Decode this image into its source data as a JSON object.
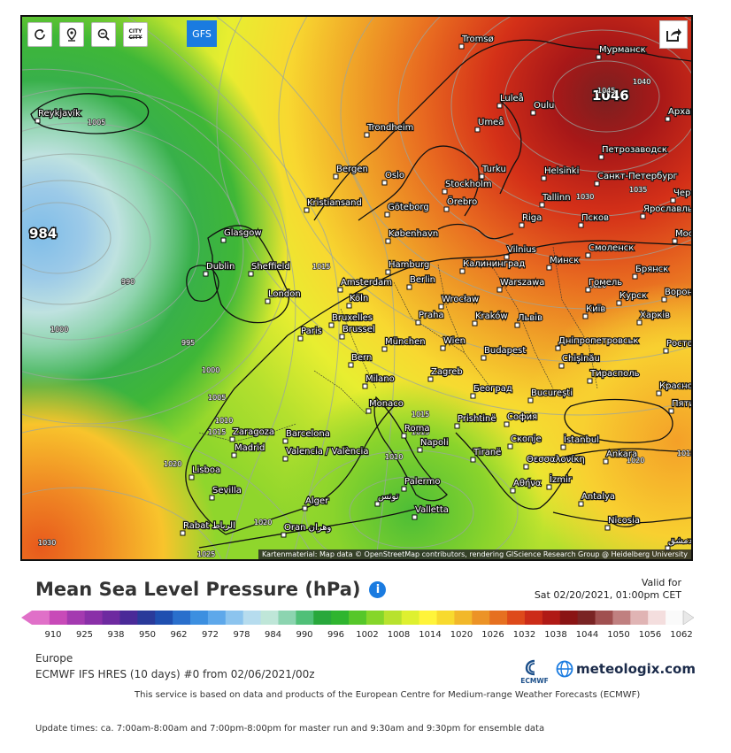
{
  "toolbar": {
    "refresh_icon": "refresh-icon",
    "location_icon": "location-pin-icon",
    "zoom_icon": "zoom-out-icon",
    "city_label_top": "CITY",
    "city_label_bottom": "CITY",
    "gfs_label": "GFS",
    "share_icon": "share-icon"
  },
  "map": {
    "attribution": "Kartenmaterial: Map data © OpenStreetMap contributors, rendering GIScience Research Group @ Heidelberg University",
    "pressure_centers": [
      {
        "label": "984",
        "type": "low"
      },
      {
        "label": "1046",
        "type": "high"
      }
    ],
    "isobar_labels": [
      "1005",
      "990",
      "1000",
      "995",
      "1000",
      "1005",
      "1010",
      "1015",
      "1020",
      "1015",
      "1030",
      "1025",
      "1020",
      "1015",
      "1010",
      "1015",
      "1020",
      "1030",
      "1035",
      "1045",
      "1040",
      "1020",
      "1015"
    ],
    "cities": [
      "Tromsø",
      "Мурманск",
      "Reykjavík",
      "Luleå",
      "Oulu",
      "Архангельск",
      "Umeå",
      "Trondheim",
      "Петрозаводск",
      "Helsinki",
      "Санкт-Петербург",
      "Bergen",
      "Turku",
      "Oslo",
      "Stockholm",
      "Tallinn",
      "Череповец",
      "Kristiansand",
      "Örebro",
      "Göteborg",
      "Ярославль",
      "Псков",
      "Riga",
      "Москва",
      "København",
      "Glasgow",
      "Смоленск",
      "Vilnius",
      "Минск",
      "Калининград",
      "Dublin",
      "Sheffield",
      "Hamburg",
      "Брянск",
      "Berlin",
      "Amsterdam",
      "Warszawa",
      "Гомель",
      "Воронеж",
      "London",
      "Köln",
      "Wrocław",
      "Курск",
      "Київ",
      "Bruxelles",
      "Brussel",
      "Praha",
      "Kraków",
      "Львів",
      "Харків",
      "Paris",
      "München",
      "Wien",
      "Дніпропетровськ",
      "Ростов-на-Дону",
      "Budapest",
      "Bern",
      "Chișinău",
      "Milano",
      "Zagreb",
      "Тирасполь",
      "Краснодар",
      "Београд",
      "București",
      "Monaco",
      "Пятигорск",
      "Zaragoza",
      "Barcelona",
      "Roma",
      "Prishtinë",
      "София",
      "Madrid",
      "Valencia / València",
      "Napoli",
      "Скопје",
      "İstanbul",
      "Lisboa",
      "Tiranë",
      "Ankara",
      "Θεσσαλονίκη",
      "Sevilla",
      "Palermo",
      "Αθήνα",
      "İzmir",
      "Alger",
      "تونس",
      "Antalya",
      "Rabat الرباط",
      "Oran وهران",
      "Valletta",
      "Nicosia",
      "دمشق"
    ]
  },
  "legend": {
    "title": "Mean Sea Level Pressure (hPa)",
    "info_icon": "info-icon",
    "valid_for_label": "Valid for",
    "valid_datetime": "Sat 02/20/2021, 01:00pm CET",
    "ticks": [
      "910",
      "925",
      "938",
      "950",
      "962",
      "972",
      "978",
      "984",
      "990",
      "996",
      "1002",
      "1008",
      "1014",
      "1020",
      "1026",
      "1032",
      "1038",
      "1044",
      "1050",
      "1056",
      "1062"
    ],
    "colors": [
      "#e070c8",
      "#c84ab8",
      "#a43ab0",
      "#8a30a8",
      "#6e2aa0",
      "#4a2a98",
      "#2a3a9a",
      "#1f4fb0",
      "#2a6fcc",
      "#3c8fe0",
      "#5ea8ea",
      "#8cc4ee",
      "#b6dcee",
      "#bfe6d8",
      "#8cd4b0",
      "#50c078",
      "#28a83c",
      "#2fb52f",
      "#56c72a",
      "#86d62a",
      "#b8e22e",
      "#def030",
      "#fff43a",
      "#f8da2e",
      "#f2b82a",
      "#ec9326",
      "#e67020",
      "#de4a1a",
      "#cc2c18",
      "#b01a16",
      "#8a1414",
      "#7a2424",
      "#a05050",
      "#c08080",
      "#e0b4b4",
      "#f4dede",
      "#fafafa"
    ]
  },
  "footer": {
    "region": "Europe",
    "model": "ECMWF IFS HRES (10 days) #0 from 02/06/2021/00z",
    "ecmwf_label": "ECMWF",
    "meteologix": "meteologix.com",
    "service": "This service is based on data and products of the European Centre for Medium-range Weather Forecasts (ECMWF)",
    "update_times": "Update times: ca. 7:00am-8:00am and 7:00pm-8:00pm for master run and 9:30am and 9:30pm for ensemble data"
  }
}
